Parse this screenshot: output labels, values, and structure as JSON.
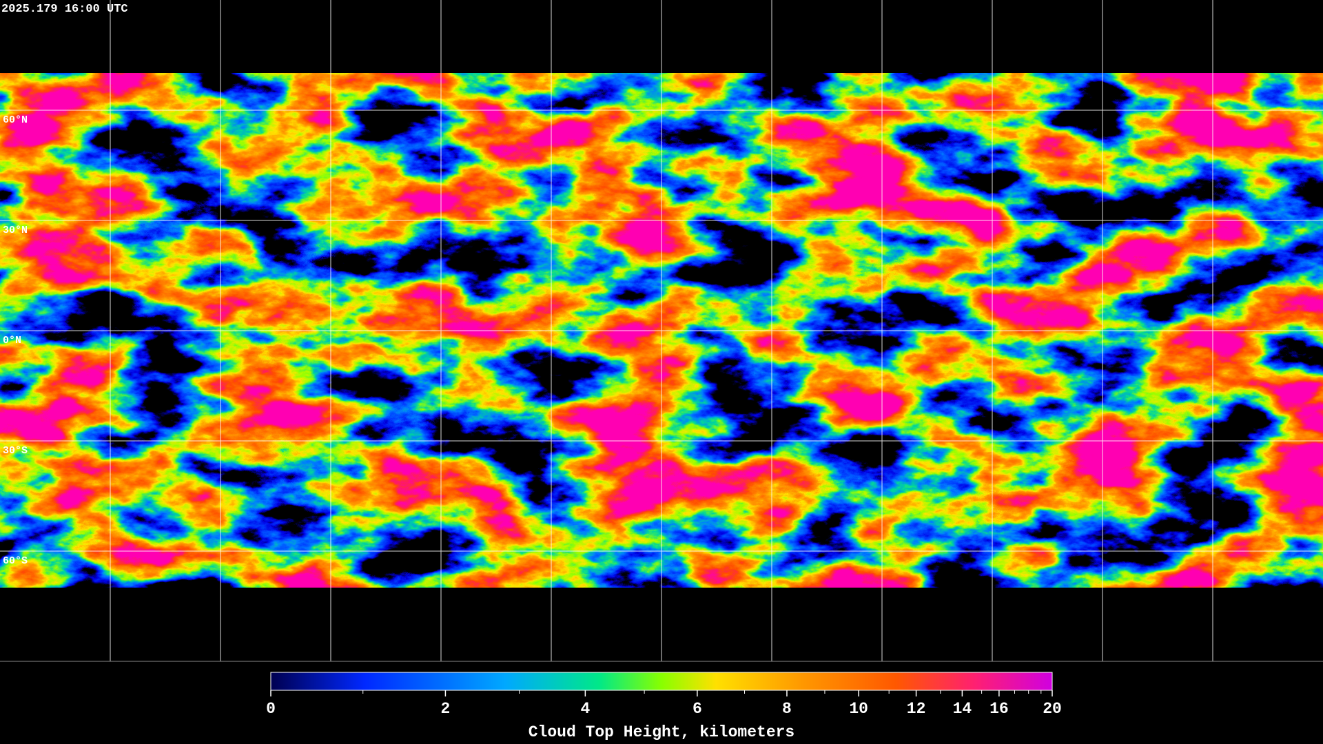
{
  "timestamp": "2025.179 16:00 UTC",
  "map": {
    "lat_labels": [
      "60°N",
      "30°N",
      "0°N",
      "30°S",
      "60°S"
    ]
  },
  "colorbar": {
    "label": "Cloud Top Height, kilometers",
    "lim": [
      0,
      20
    ],
    "ticks": [
      0,
      2,
      4,
      6,
      8,
      10,
      12,
      14,
      16,
      20
    ]
  }
}
